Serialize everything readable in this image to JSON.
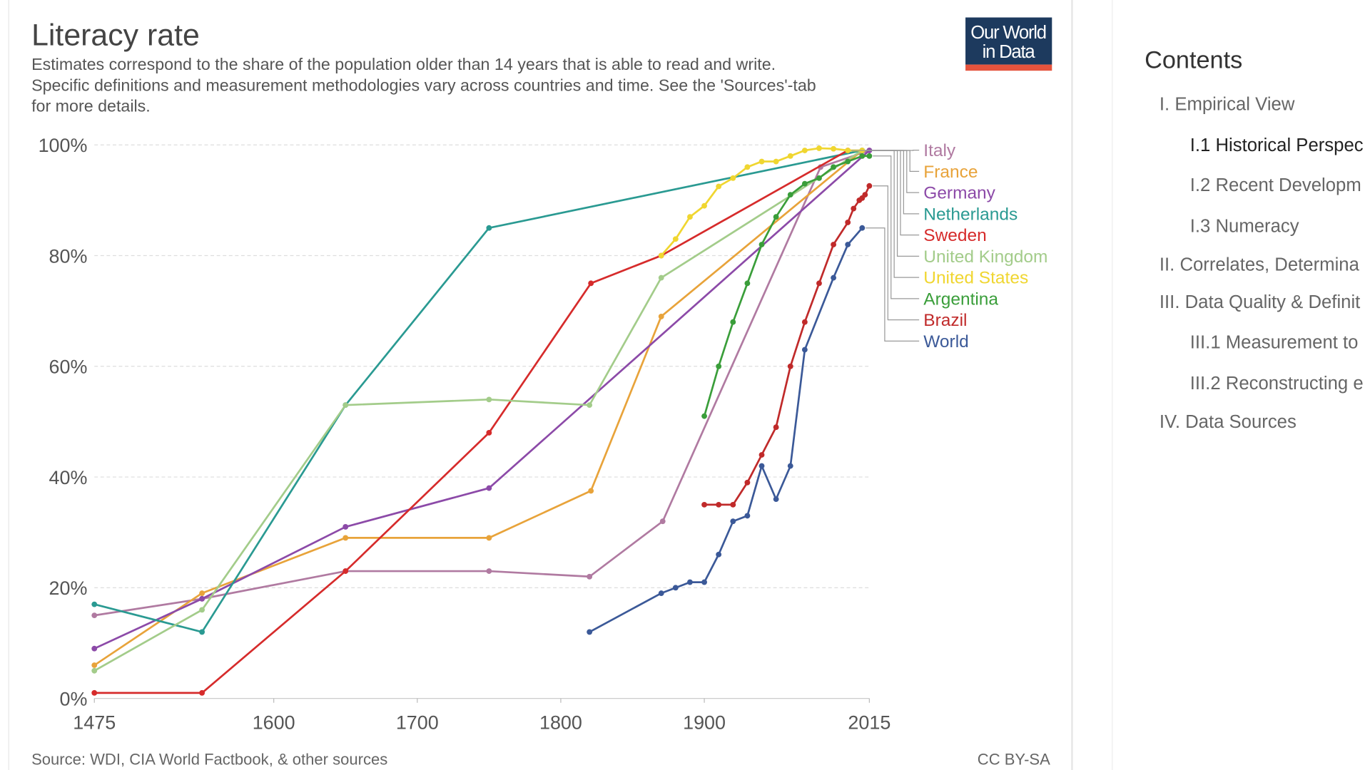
{
  "chart_data": {
    "type": "line",
    "title": "Literacy rate",
    "subtitle": [
      "Estimates correspond to the share of the population older than 14 years that is able to read and write.",
      "Specific definitions and measurement methodologies vary across countries and time. See the 'Sources'-tab",
      "for more details."
    ],
    "logo": [
      "Our World",
      "in Data"
    ],
    "source": "Source: WDI, CIA World Factbook, & other sources",
    "license": "CC BY-SA",
    "xlim": [
      1475,
      2015
    ],
    "xticks": [
      1475,
      1600,
      1700,
      1800,
      1900,
      2015
    ],
    "ylim": [
      0,
      100
    ],
    "yticks": [
      {
        "value": 0,
        "label": "0%"
      },
      {
        "value": 20,
        "label": "20%"
      },
      {
        "value": 40,
        "label": "40%"
      },
      {
        "value": 60,
        "label": "60%"
      },
      {
        "value": 80,
        "label": "80%"
      },
      {
        "value": 100,
        "label": "100%"
      }
    ],
    "grid": true,
    "series": [
      {
        "name": "Italy",
        "color": "#b07aa1",
        "x": [
          1475,
          1550,
          1650,
          1750,
          1820,
          1871,
          1981,
          2015
        ],
        "values": [
          15,
          18,
          23,
          23,
          22,
          32,
          96,
          99
        ]
      },
      {
        "name": "France",
        "color": "#e8a33a",
        "x": [
          1475,
          1550,
          1650,
          1750,
          1821,
          1870,
          2010
        ],
        "values": [
          6,
          19,
          29,
          29,
          37.5,
          69,
          99
        ]
      },
      {
        "name": "Germany",
        "color": "#8c4aa8",
        "x": [
          1475,
          1550,
          1650,
          1750,
          2015
        ],
        "values": [
          9,
          18,
          31,
          38,
          99
        ]
      },
      {
        "name": "Netherlands",
        "color": "#2a9a92",
        "x": [
          1475,
          1550,
          1650,
          1750,
          2010
        ],
        "values": [
          17,
          12,
          53,
          85,
          99
        ]
      },
      {
        "name": "Sweden",
        "color": "#d62b2b",
        "x": [
          1475,
          1550,
          1650,
          1750,
          1821,
          1870,
          2000
        ],
        "values": [
          1,
          1,
          23,
          48,
          75,
          80,
          99
        ]
      },
      {
        "name": "United Kingdom",
        "color": "#a3cc8a",
        "x": [
          1475,
          1550,
          1650,
          1750,
          1820,
          1870,
          2010
        ],
        "values": [
          5,
          16,
          53,
          54,
          53,
          76,
          99
        ]
      },
      {
        "name": "United States",
        "color": "#f0d630",
        "x": [
          1870,
          1880,
          1890,
          1900,
          1910,
          1920,
          1930,
          1940,
          1950,
          1960,
          1970,
          1980,
          1990,
          2000,
          2010
        ],
        "values": [
          80,
          83,
          87,
          89,
          92.5,
          94,
          96,
          97,
          97,
          98,
          99,
          99.4,
          99.3,
          99,
          99
        ]
      },
      {
        "name": "Argentina",
        "color": "#3a9e3a",
        "x": [
          1900,
          1910,
          1920,
          1930,
          1940,
          1950,
          1960,
          1970,
          1980,
          1990,
          2000,
          2010,
          2015
        ],
        "values": [
          51,
          60,
          68,
          75,
          82,
          87,
          91,
          93,
          94,
          96,
          97,
          98,
          98
        ]
      },
      {
        "name": "Brazil",
        "color": "#c02a2a",
        "x": [
          1900,
          1910,
          1920,
          1930,
          1940,
          1950,
          1960,
          1970,
          1980,
          1990,
          2000,
          2004,
          2008,
          2010,
          2012,
          2015
        ],
        "values": [
          35,
          35,
          35,
          39,
          44,
          49,
          60,
          68,
          75,
          82,
          86,
          88.5,
          90,
          90.4,
          91,
          92.6
        ]
      },
      {
        "name": "World",
        "color": "#3b5998",
        "x": [
          1820,
          1870,
          1880,
          1890,
          1900,
          1910,
          1920,
          1930,
          1940,
          1950,
          1960,
          1970,
          1990,
          2000,
          2010
        ],
        "values": [
          12,
          19,
          20,
          21,
          21,
          26,
          32,
          33,
          42,
          36,
          42,
          63,
          76,
          82,
          85
        ]
      }
    ]
  },
  "contents": {
    "title": "Contents",
    "items": [
      "I. Empirical View",
      "I.1 Historical Perspec",
      "I.2 Recent Developm",
      "I.3 Numeracy",
      "II. Correlates, Determina",
      "III. Data Quality & Definit",
      "III.1 Measurement to",
      "III.2 Reconstructing e",
      "IV. Data Sources"
    ]
  }
}
